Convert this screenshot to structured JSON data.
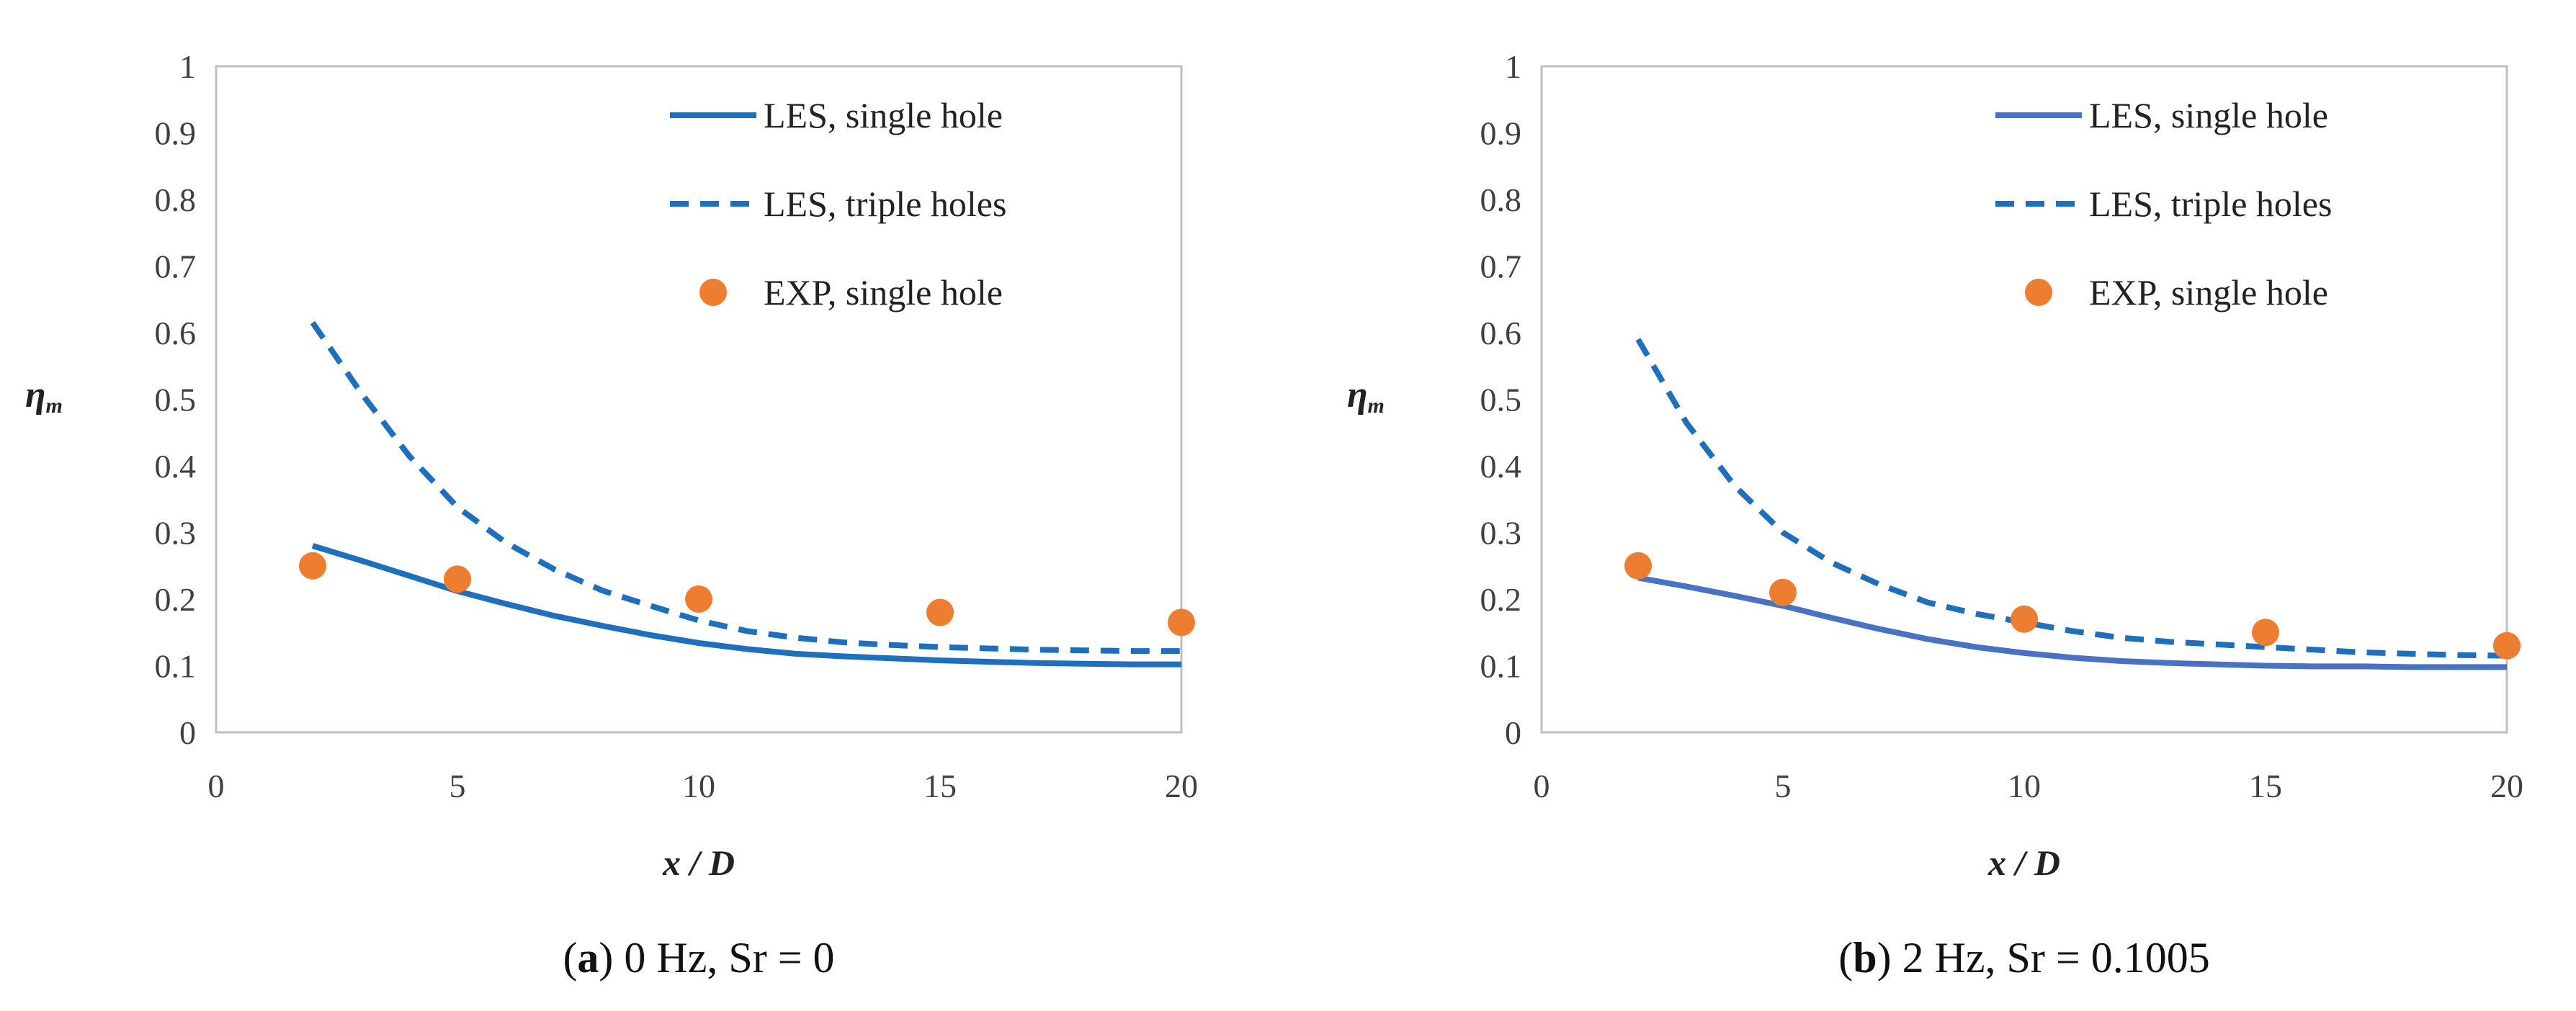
{
  "chart_data": [
    {
      "type": "line",
      "title": "",
      "caption": {
        "open": "(",
        "letter": "a",
        "close": ")",
        "text": " 0 Hz, Sr = 0"
      },
      "xlabel": "x / D",
      "ylabel": {
        "base": "η",
        "sub": "m"
      },
      "xlim": [
        0,
        20
      ],
      "ylim": [
        0,
        1
      ],
      "xticks": [
        0,
        5,
        10,
        15,
        20
      ],
      "yticks": [
        0,
        0.1,
        0.2,
        0.3,
        0.4,
        0.5,
        0.6,
        0.7,
        0.8,
        0.9,
        1
      ],
      "grid": false,
      "legend_position": "top-right",
      "series": [
        {
          "name": "LES, single hole",
          "style": "solid",
          "marker": "none",
          "color": "#1f6fbf",
          "x": [
            2,
            3,
            4,
            5,
            6,
            7,
            8,
            9,
            10,
            11,
            12,
            13,
            14,
            15,
            16,
            17,
            18,
            19,
            20
          ],
          "y": [
            0.28,
            0.258,
            0.235,
            0.212,
            0.193,
            0.175,
            0.16,
            0.146,
            0.134,
            0.125,
            0.118,
            0.114,
            0.111,
            0.108,
            0.106,
            0.104,
            0.103,
            0.102,
            0.102
          ]
        },
        {
          "name": "LES, triple holes",
          "style": "dashed",
          "marker": "none",
          "color": "#1f6fbf",
          "x": [
            2,
            3,
            4,
            5,
            6,
            7,
            8,
            9,
            10,
            11,
            12,
            13,
            14,
            15,
            16,
            17,
            18,
            19,
            20
          ],
          "y": [
            0.615,
            0.51,
            0.415,
            0.338,
            0.285,
            0.245,
            0.213,
            0.19,
            0.168,
            0.152,
            0.142,
            0.135,
            0.131,
            0.128,
            0.126,
            0.124,
            0.123,
            0.122,
            0.122
          ]
        },
        {
          "name": "EXP, single hole",
          "style": "none",
          "marker": "circle",
          "color": "#ed7d31",
          "x": [
            2,
            5,
            10,
            15,
            20
          ],
          "y": [
            0.25,
            0.23,
            0.2,
            0.18,
            0.165
          ]
        }
      ]
    },
    {
      "type": "line",
      "title": "",
      "caption": {
        "open": "(",
        "letter": "b",
        "close": ")",
        "text": " 2 Hz, Sr = 0.1005"
      },
      "xlabel": "x / D",
      "ylabel": {
        "base": "η",
        "sub": "m"
      },
      "xlim": [
        0,
        20
      ],
      "ylim": [
        0,
        1
      ],
      "xticks": [
        0,
        5,
        10,
        15,
        20
      ],
      "yticks": [
        0,
        0.1,
        0.2,
        0.3,
        0.4,
        0.5,
        0.6,
        0.7,
        0.8,
        0.9,
        1
      ],
      "grid": false,
      "legend_position": "top-right",
      "series": [
        {
          "name": "LES, single hole",
          "style": "solid",
          "marker": "none",
          "color": "#4a72c4",
          "x": [
            2,
            3,
            4,
            5,
            6,
            7,
            8,
            9,
            10,
            11,
            12,
            13,
            14,
            15,
            16,
            17,
            18,
            19,
            20
          ],
          "y": [
            0.232,
            0.219,
            0.205,
            0.19,
            0.172,
            0.155,
            0.14,
            0.128,
            0.119,
            0.112,
            0.107,
            0.104,
            0.102,
            0.1,
            0.099,
            0.099,
            0.098,
            0.098,
            0.098
          ]
        },
        {
          "name": "LES, triple holes",
          "style": "dashed",
          "marker": "none",
          "color": "#1f6fbf",
          "x": [
            2,
            3,
            4,
            5,
            6,
            7,
            8,
            9,
            10,
            11,
            12,
            13,
            14,
            15,
            16,
            17,
            18,
            19,
            20
          ],
          "y": [
            0.59,
            0.465,
            0.37,
            0.3,
            0.255,
            0.222,
            0.195,
            0.178,
            0.165,
            0.152,
            0.142,
            0.136,
            0.132,
            0.128,
            0.124,
            0.12,
            0.118,
            0.116,
            0.115
          ]
        },
        {
          "name": "EXP, single hole",
          "style": "none",
          "marker": "circle",
          "color": "#ed7d31",
          "x": [
            2,
            5,
            10,
            15,
            20
          ],
          "y": [
            0.25,
            0.21,
            0.17,
            0.15,
            0.13
          ]
        }
      ]
    }
  ]
}
